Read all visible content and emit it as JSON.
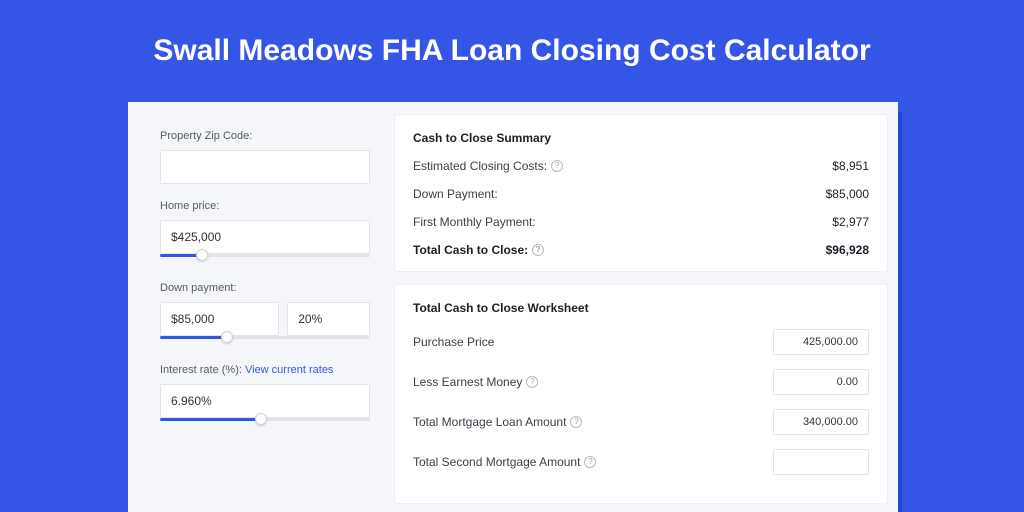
{
  "colors": {
    "page_bg": "#3555e6",
    "shadow_block": "#2a45c9",
    "app_bg": "#f5f6fa",
    "card_bg": "#ffffff",
    "border": "#e2e4ea",
    "text_primary": "#1b1f27",
    "text_secondary": "#4a4f5a",
    "link": "#3555e6"
  },
  "header": {
    "title": "Swall Meadows FHA Loan Closing Cost Calculator"
  },
  "inputs": {
    "zip": {
      "label": "Property Zip Code:",
      "value": ""
    },
    "home_price": {
      "label": "Home price:",
      "value": "$425,000",
      "slider_pct": 20
    },
    "down_payment": {
      "label": "Down payment:",
      "value": "$85,000",
      "percent": "20%",
      "slider_pct": 32
    },
    "interest_rate": {
      "label": "Interest rate (%):",
      "link_text": "View current rates",
      "value": "6.960%",
      "slider_pct": 48
    }
  },
  "summary": {
    "title": "Cash to Close Summary",
    "rows": [
      {
        "label": "Estimated Closing Costs:",
        "help": true,
        "value": "$8,951"
      },
      {
        "label": "Down Payment:",
        "help": false,
        "value": "$85,000"
      },
      {
        "label": "First Monthly Payment:",
        "help": false,
        "value": "$2,977"
      }
    ],
    "total": {
      "label": "Total Cash to Close:",
      "help": true,
      "value": "$96,928"
    }
  },
  "worksheet": {
    "title": "Total Cash to Close Worksheet",
    "rows": [
      {
        "label": "Purchase Price",
        "help": false,
        "value": "425,000.00"
      },
      {
        "label": "Less Earnest Money",
        "help": true,
        "value": "0.00"
      },
      {
        "label": "Total Mortgage Loan Amount",
        "help": true,
        "value": "340,000.00"
      },
      {
        "label": "Total Second Mortgage Amount",
        "help": true,
        "value": ""
      }
    ]
  }
}
